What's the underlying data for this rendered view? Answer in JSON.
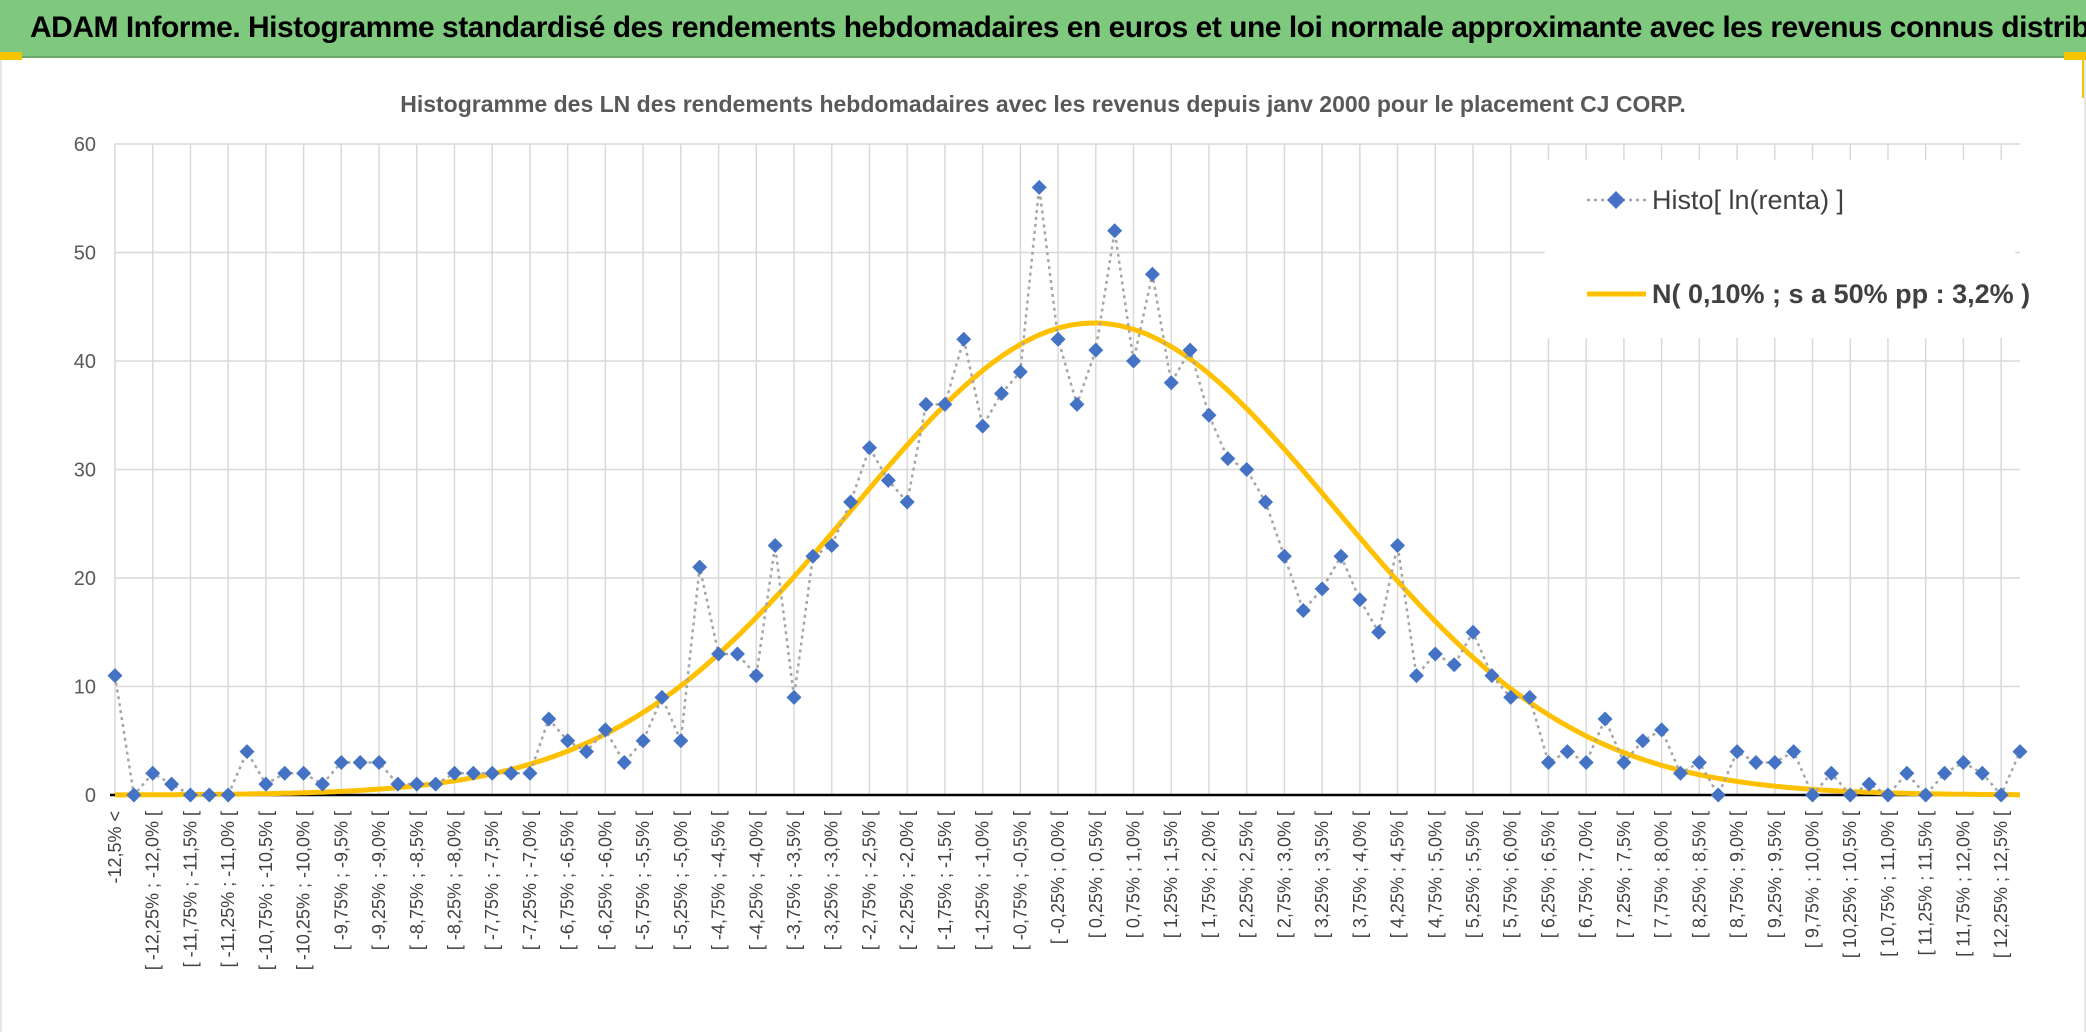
{
  "header": {
    "title": "ADAM Informe. Histogramme standardisé des rendements hebdomadaires en euros et une loi normale approximante avec les revenus connus distribués"
  },
  "colors": {
    "banner": "#7fc97f",
    "accent": "#f5c400",
    "series_points": "#4472c4",
    "series_line": "#a6a6a6",
    "normal_curve": "#ffc000"
  },
  "chart_data": {
    "type": "line",
    "title": "Histogramme des LN des rendements hebdomadaires avec les revenus depuis janv 2000 pour le placement CJ CORP.",
    "xlabel": "",
    "ylabel": "",
    "ylim": [
      0,
      60
    ],
    "yticks": [
      0,
      10,
      20,
      30,
      40,
      50,
      60
    ],
    "grid": true,
    "legend_position": "top-right",
    "categories": [
      "-12,5% <",
      "[ -12,5% ; -12,25% [",
      "[ -12,25% ; -12,0% [",
      "[ -12,0% ; -11,75% [",
      "[ -11,75% ; -11,5% [",
      "[ -11,5% ; -11,25% [",
      "[ -11,25% ; -11,0% [",
      "[ -11,0% ; -10,75% [",
      "[ -10,75% ; -10,5% [",
      "[ -10,5% ; -10,25% [",
      "[ -10,25% ; -10,0% [",
      "[ -10,0% ; -9,75% [",
      "[ -9,75% ; -9,5% [",
      "[ -9,5% ; -9,25% [",
      "[ -9,25% ; -9,0% [",
      "[ -9,0% ; -8,75% [",
      "[ -8,75% ; -8,5% [",
      "[ -8,5% ; -8,25% [",
      "[ -8,25% ; -8,0% [",
      "[ -8,0% ; -7,75% [",
      "[ -7,75% ; -7,5% [",
      "[ -7,5% ; -7,25% [",
      "[ -7,25% ; -7,0% [",
      "[ -7,0% ; -6,75% [",
      "[ -6,75% ; -6,5% [",
      "[ -6,5% ; -6,25% [",
      "[ -6,25% ; -6,0% [",
      "[ -6,0% ; -5,75% [",
      "[ -5,75% ; -5,5% [",
      "[ -5,5% ; -5,25% [",
      "[ -5,25% ; -5,0% [",
      "[ -5,0% ; -4,75% [",
      "[ -4,75% ; -4,5% [",
      "[ -4,5% ; -4,25% [",
      "[ -4,25% ; -4,0% [",
      "[ -4,0% ; -3,75% [",
      "[ -3,75% ; -3,5% [",
      "[ -3,5% ; -3,25% [",
      "[ -3,25% ; -3,0% [",
      "[ -3,0% ; -2,75% [",
      "[ -2,75% ; -2,5% [",
      "[ -2,5% ; -2,25% [",
      "[ -2,25% ; -2,0% [",
      "[ -2,0% ; -1,75% [",
      "[ -1,75% ; -1,5% [",
      "[ -1,5% ; -1,25% [",
      "[ -1,25% ; -1,0% [",
      "[ -1,0% ; -0,75% [",
      "[ -0,75% ; -0,5% [",
      "[ -0,5% ; -0,25% [",
      "[ -0,25% ; 0,0% [",
      "[ 0,0% ; 0,25% [",
      "[ 0,25% ; 0,5% [",
      "[ 0,5% ; 0,75% [",
      "[ 0,75% ; 1,0% [",
      "[ 1,0% ; 1,25% [",
      "[ 1,25% ; 1,5% [",
      "[ 1,5% ; 1,75% [",
      "[ 1,75% ; 2,0% [",
      "[ 2,0% ; 2,25% [",
      "[ 2,25% ; 2,5% [",
      "[ 2,5% ; 2,75% [",
      "[ 2,75% ; 3,0% [",
      "[ 3,0% ; 3,25% [",
      "[ 3,25% ; 3,5% [",
      "[ 3,5% ; 3,75% [",
      "[ 3,75% ; 4,0% [",
      "[ 4,0% ; 4,25% [",
      "[ 4,25% ; 4,5% [",
      "[ 4,5% ; 4,75% [",
      "[ 4,75% ; 5,0% [",
      "[ 5,0% ; 5,25% [",
      "[ 5,25% ; 5,5% [",
      "[ 5,5% ; 5,75% [",
      "[ 5,75% ; 6,0% [",
      "[ 6,0% ; 6,25% [",
      "[ 6,25% ; 6,5% [",
      "[ 6,5% ; 6,75% [",
      "[ 6,75% ; 7,0% [",
      "[ 7,0% ; 7,25% [",
      "[ 7,25% ; 7,5% [",
      "[ 7,5% ; 7,75% [",
      "[ 7,75% ; 8,0% [",
      "[ 8,0% ; 8,25% [",
      "[ 8,25% ; 8,5% [",
      "[ 8,5% ; 8,75% [",
      "[ 8,75% ; 9,0% [",
      "[ 9,0% ; 9,25% [",
      "[ 9,25% ; 9,5% [",
      "[ 9,5% ; 9,75% [",
      "[ 9,75% ; 10,0% [",
      "[ 10,0% ; 10,25% [",
      "[ 10,25% ; 10,5% [",
      "[ 10,5% ; 10,75% [",
      "[ 10,75% ; 11,0% [",
      "[ 11,0% ; 11,25% [",
      "[ 11,25% ; 11,5% [",
      "[ 11,5% ; 11,75% [",
      "[ 11,75% ; 12,0% [",
      "[ 12,0% ; 12,25% [",
      "[ 12,25% ; 12,5% [",
      "12,5% <"
    ],
    "series": [
      {
        "name": "Histo[ ln(renta) ]",
        "values": [
          11,
          0,
          2,
          1,
          0,
          0,
          0,
          4,
          1,
          2,
          2,
          1,
          3,
          3,
          3,
          1,
          1,
          1,
          2,
          2,
          2,
          2,
          2,
          7,
          5,
          4,
          6,
          3,
          5,
          9,
          5,
          21,
          13,
          13,
          11,
          23,
          9,
          22,
          23,
          27,
          32,
          29,
          27,
          36,
          36,
          42,
          34,
          37,
          39,
          56,
          42,
          36,
          41,
          52,
          40,
          48,
          38,
          41,
          35,
          31,
          30,
          27,
          22,
          17,
          19,
          22,
          18,
          15,
          23,
          11,
          13,
          12,
          15,
          11,
          9,
          9,
          3,
          4,
          3,
          7,
          3,
          5,
          6,
          2,
          3,
          0,
          4,
          3,
          3,
          4,
          0,
          2,
          0,
          1,
          0,
          2,
          0,
          2,
          3,
          2,
          0,
          4
        ]
      },
      {
        "name": "N( 0,10% ; s a 50% pp : 3,2% )",
        "mean_percent": 0.1,
        "sd_percent": 3.2,
        "peak": 43.5
      }
    ]
  }
}
